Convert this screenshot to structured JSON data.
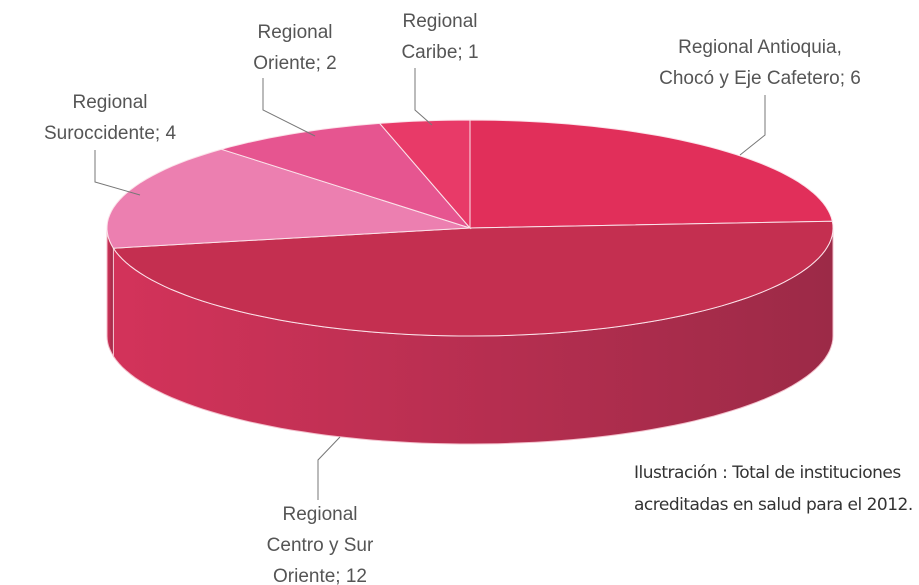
{
  "chart_data": {
    "type": "pie3d",
    "values": [
      6,
      12,
      4,
      2,
      1
    ],
    "value_labels": [
      [
        "Regional Antioquia,",
        "Chocó y Eje Cafetero; 6"
      ],
      [
        "Regional",
        "Centro y Sur",
        "Oriente; 12"
      ],
      [
        "Regional",
        "Suroccidente; 4"
      ],
      [
        "Regional",
        "Oriente; 2"
      ],
      [
        "Regional",
        "Caribe; 1"
      ]
    ],
    "colors": [
      "#e12f5a",
      "#c42f50",
      "#ec7fb0",
      "#e65590",
      "#e83a68"
    ],
    "caption": [
      "Ilustración   : Total de instituciones",
      "acreditadas en salud para el 2012."
    ]
  }
}
